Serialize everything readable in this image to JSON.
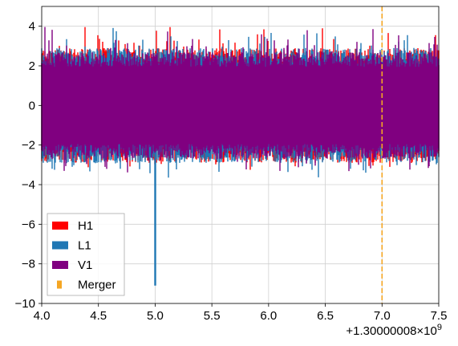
{
  "chart_data": {
    "type": "line",
    "title": "",
    "xlabel": "",
    "ylabel": "",
    "xlim": [
      4.0,
      7.5
    ],
    "ylim": [
      -10,
      5
    ],
    "grid": true,
    "legend_position": "lower-left",
    "x_offset_label": "+1.30000008",
    "x_offset_exponent_base": "×10",
    "x_offset_exponent": "9",
    "x_ticks": [
      {
        "value": 4.0,
        "label": "4.0"
      },
      {
        "value": 4.5,
        "label": "4.5"
      },
      {
        "value": 5.0,
        "label": "5.0"
      },
      {
        "value": 5.5,
        "label": "5.5"
      },
      {
        "value": 6.0,
        "label": "6.0"
      },
      {
        "value": 6.5,
        "label": "6.5"
      },
      {
        "value": 7.0,
        "label": "7.0"
      },
      {
        "value": 7.5,
        "label": "7.5"
      }
    ],
    "y_ticks": [
      {
        "value": 4,
        "label": "4"
      },
      {
        "value": 2,
        "label": "2"
      },
      {
        "value": 0,
        "label": "0"
      },
      {
        "value": -2,
        "label": "−2"
      },
      {
        "value": -4,
        "label": "−4"
      },
      {
        "value": -6,
        "label": "−6"
      },
      {
        "value": -8,
        "label": "−8"
      },
      {
        "value": -10,
        "label": "−10"
      }
    ],
    "series": [
      {
        "name": "H1",
        "color": "#ff0000",
        "noise_upper": 2.9,
        "noise_lower": -2.9,
        "max": 4.3,
        "min": -3.6
      },
      {
        "name": "L1",
        "color": "#1f77b4",
        "noise_upper": 2.9,
        "noise_lower": -2.9,
        "max": 4.1,
        "min": -9.1,
        "glitch_x": 5.0,
        "glitch_value": -9.1
      },
      {
        "name": "V1",
        "color": "#800080",
        "noise_upper": 2.7,
        "noise_lower": -2.7,
        "max": 4.2,
        "min": -3.8
      }
    ],
    "merger": {
      "name": "Merger",
      "x": 7.0,
      "color": "#f5a623",
      "style": "dashed"
    }
  }
}
